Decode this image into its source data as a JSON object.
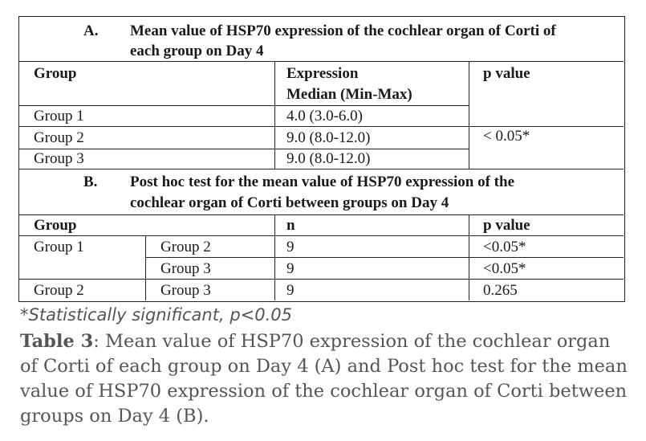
{
  "section_a": {
    "letter": "A.",
    "title_line1": "Mean value of HSP70 expression of the cochlear organ of Corti of",
    "title_line2": "each group on Day 4",
    "headers": {
      "group": "Group",
      "expr_line1": "Expression",
      "expr_line2": "Median (Min-Max)",
      "p": "p value"
    },
    "rows": [
      {
        "group": "Group 1",
        "value": "4.0 (3.0-6.0)"
      },
      {
        "group": "Group 2",
        "value": "9.0 (8.0-12.0)"
      },
      {
        "group": "Group 3",
        "value": "9.0 (8.0-12.0)"
      }
    ],
    "p_value": "< 0.05*"
  },
  "section_b": {
    "letter": "B.",
    "title_line1": "Post hoc test for the mean value of HSP70 expression of the",
    "title_line2": "cochlear organ of Corti between groups on Day 4",
    "headers": {
      "group": "Group",
      "n": "n",
      "p": "p value"
    },
    "rows": [
      {
        "group": "Group 1",
        "compare": "Group 2",
        "n": "9",
        "p": "<0.05*"
      },
      {
        "group": "",
        "compare": "Group 3",
        "n": "9",
        "p": "<0.05*"
      },
      {
        "group": "Group 2",
        "compare": "Group 3",
        "n": "9",
        "p": "0.265"
      }
    ]
  },
  "caption": {
    "note": "*Statistically significant, p<0.05",
    "label": "Table 3",
    "text": ": Mean value of HSP70 expression of the cochlear organ of Corti of each group on Day 4 (A) and Post hoc test for the mean value of HSP70 expression of the cochlear organ of Corti between groups on Day 4 (B)."
  }
}
